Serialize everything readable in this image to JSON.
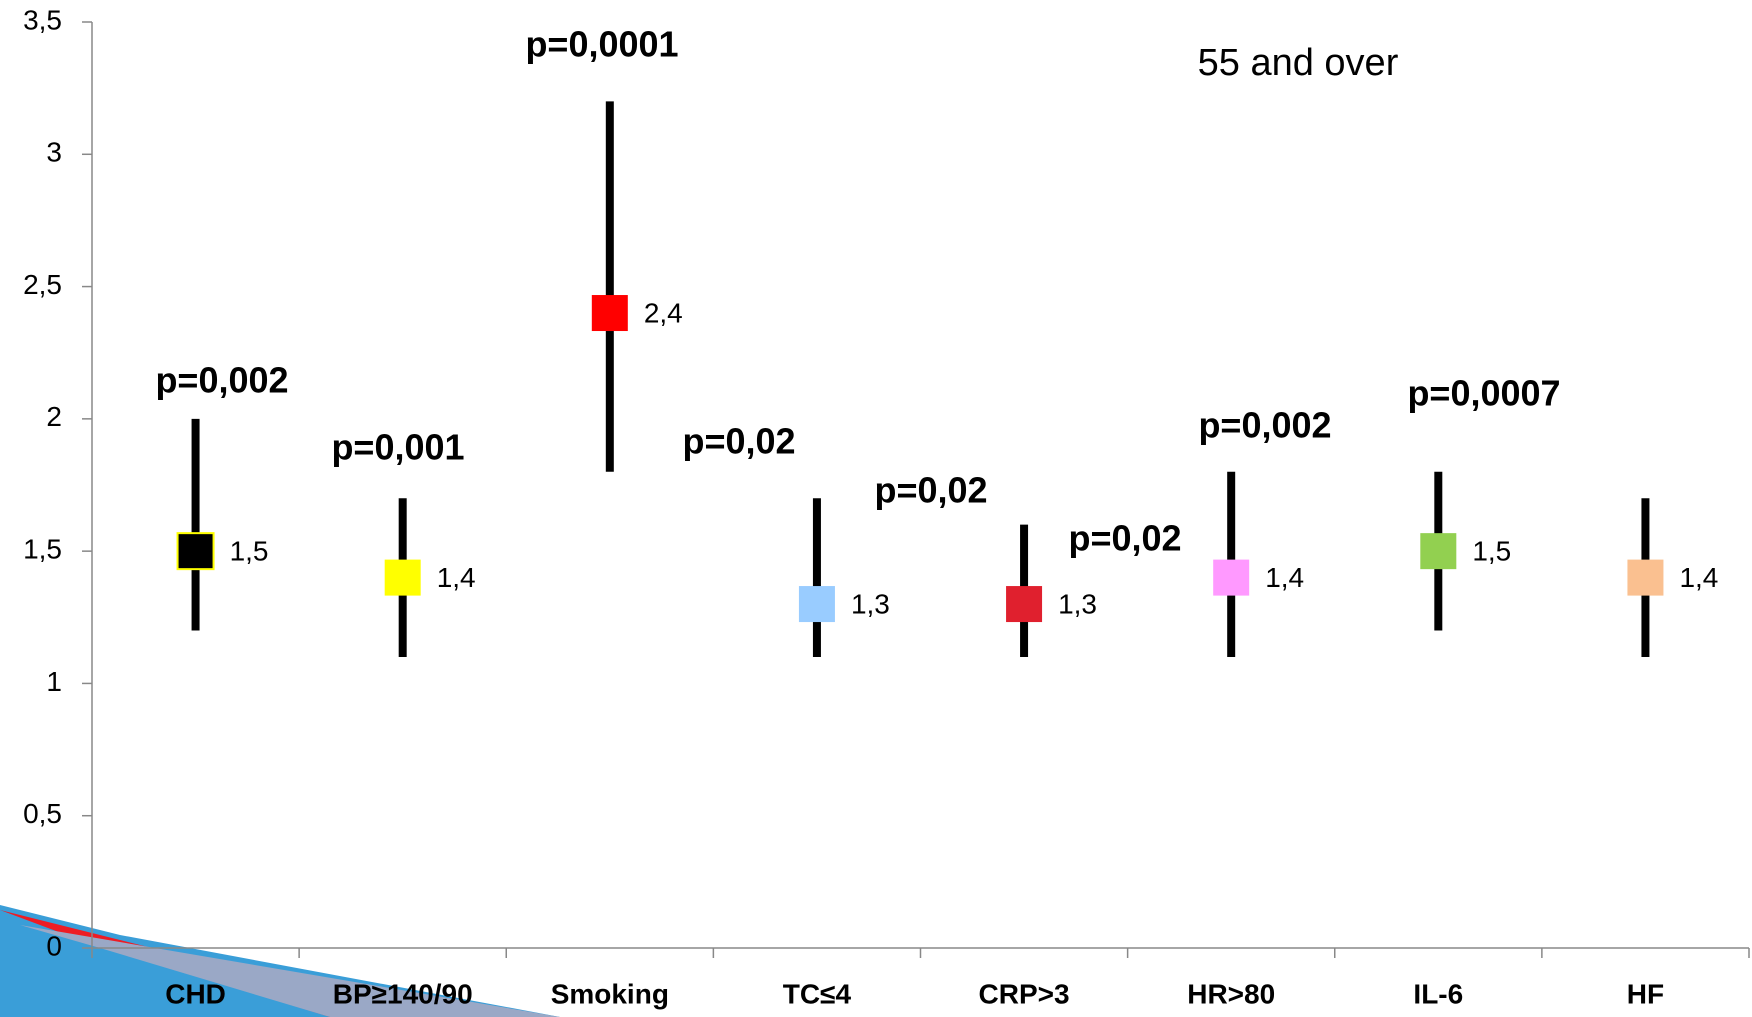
{
  "chart_data": {
    "type": "errorbar",
    "subtitle": "55 and over",
    "categories": [
      "CHD",
      "BP≥140/90",
      "Smoking",
      "TC≤4",
      "CRP>3",
      "HR>80",
      "IL-6",
      "HF"
    ],
    "values": [
      1.5,
      1.4,
      2.4,
      1.3,
      1.3,
      1.4,
      1.5,
      1.4
    ],
    "value_labels": [
      "1,5",
      "1,4",
      "2,4",
      "1,3",
      "1,3",
      "1,4",
      "1,5",
      "1,4"
    ],
    "lower": [
      1.2,
      1.1,
      1.8,
      1.1,
      1.1,
      1.1,
      1.2,
      1.1
    ],
    "upper": [
      2.0,
      1.7,
      3.2,
      1.7,
      1.6,
      1.8,
      1.8,
      1.7
    ],
    "colors": [
      "#000000",
      "#ffff00",
      "#ff0000",
      "#99ccff",
      "#e0202e",
      "#ff99ff",
      "#92d050",
      "#fac090"
    ],
    "annotations": [
      "p=0,002",
      "p=0,001",
      "p=0,0001",
      "p=0,02",
      "p=0,02",
      "p=0,02",
      "p=0,002",
      "p=0,0007"
    ],
    "ylim": [
      0,
      3.5
    ],
    "yticks": [
      0,
      {
        "value": 0.5,
        "label": "0,5"
      },
      1,
      {
        "value": 1.5,
        "label": "1,5"
      },
      2,
      {
        "value": 2.5,
        "label": "2,5"
      },
      3,
      {
        "value": 3.5,
        "label": "3,5"
      }
    ]
  }
}
